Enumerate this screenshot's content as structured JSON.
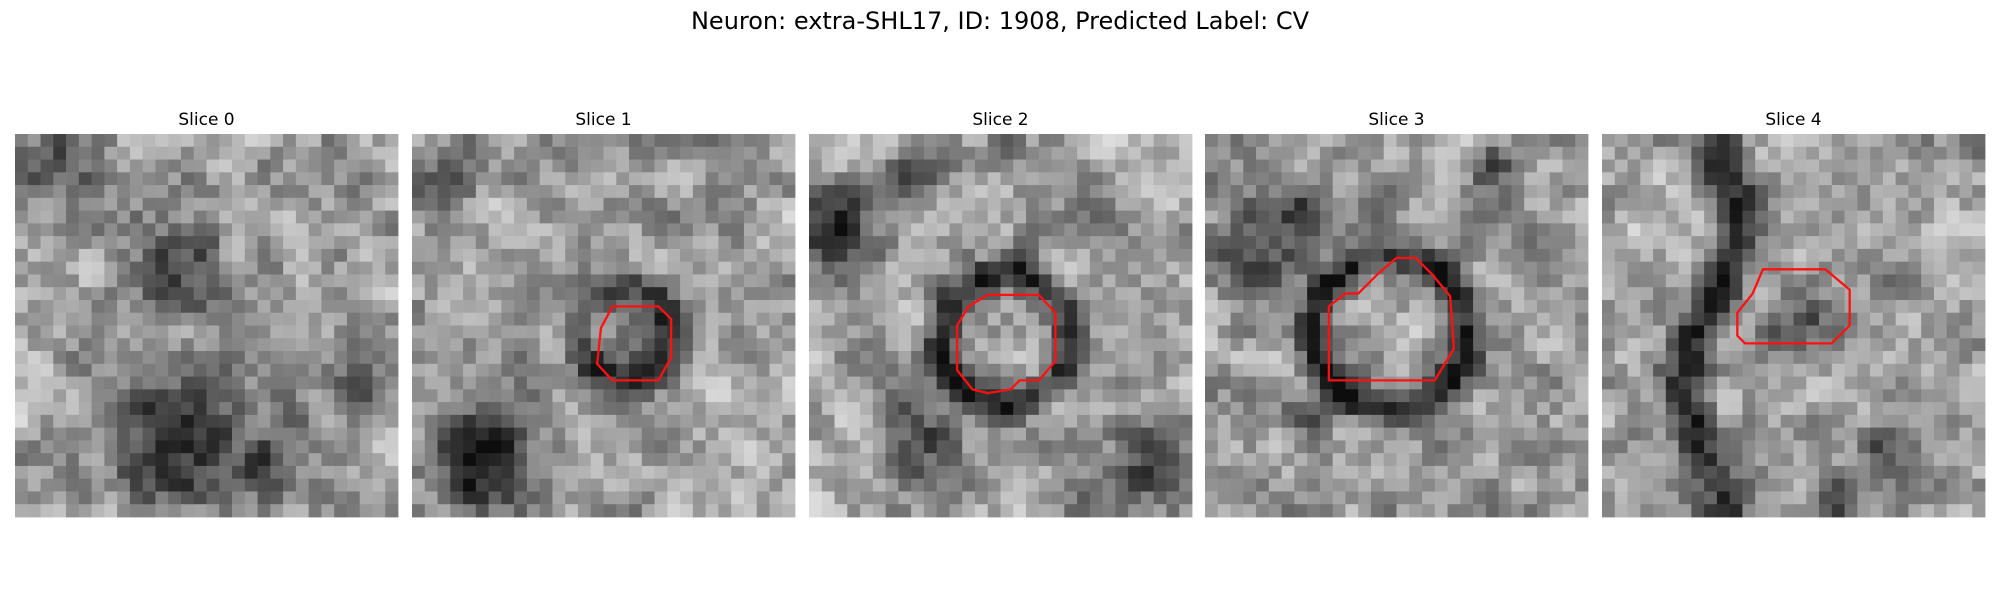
{
  "header": {
    "title": "Neuron: extra-SHL17, ID: 1908, Predicted Label: CV"
  },
  "panels": [
    {
      "title": "Slice 0"
    },
    {
      "title": "Slice 1"
    },
    {
      "title": "Slice 2"
    },
    {
      "title": "Slice 3"
    },
    {
      "title": "Slice 4"
    }
  ]
}
